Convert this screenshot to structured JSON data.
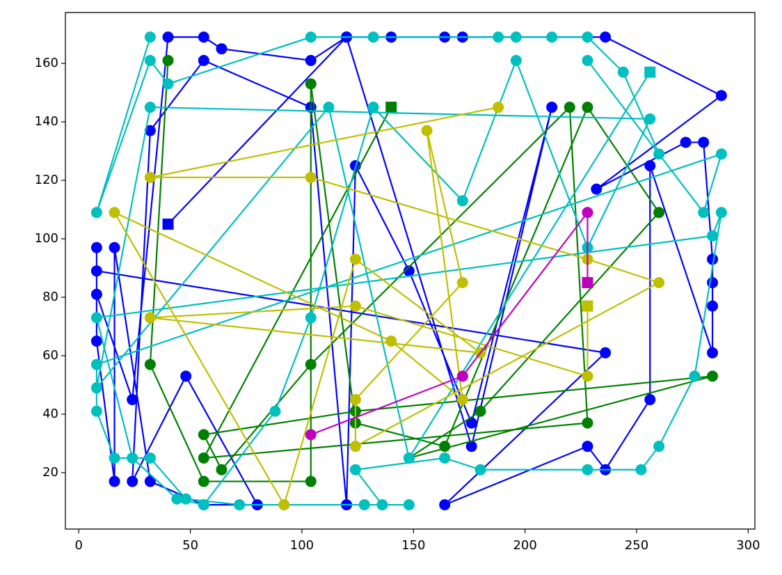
{
  "chart_data": {
    "type": "line",
    "xlim": [
      -6,
      303
    ],
    "ylim": [
      0.7,
      177.4
    ],
    "xticks": [
      0,
      50,
      100,
      150,
      200,
      250,
      300
    ],
    "yticks": [
      20,
      40,
      60,
      80,
      100,
      120,
      140,
      160
    ],
    "series": [
      {
        "color": "#0000ff",
        "x": [
          8,
          8,
          24,
          40,
          56,
          64,
          104,
          120,
          140,
          164,
          172,
          236,
          288,
          232,
          272,
          280,
          284,
          284,
          284,
          284,
          256,
          256,
          236,
          228,
          164,
          236,
          8,
          8,
          16,
          16,
          32,
          56,
          80,
          48,
          24,
          32,
          56,
          104,
          120,
          124,
          148,
          176,
          212,
          176,
          120,
          40
        ],
        "values": [
          97,
          81,
          45,
          169,
          169,
          165,
          161,
          169,
          169,
          169,
          169,
          169,
          149,
          117,
          133,
          133,
          93,
          85,
          77,
          61,
          125,
          45,
          21,
          29,
          9,
          61,
          89,
          65,
          17,
          97,
          17,
          9,
          9,
          53,
          17,
          137,
          161,
          145,
          9,
          125,
          89,
          37,
          145,
          29,
          169,
          105
        ]
      },
      {
        "color": "#008000",
        "x": [
          40,
          32,
          56,
          104,
          104,
          124,
          164,
          228,
          260,
          180,
          148,
          284,
          124,
          56,
          64,
          104,
          220,
          228,
          56,
          140
        ],
        "values": [
          161,
          57,
          17,
          17,
          153,
          37,
          29,
          145,
          109,
          41,
          25,
          53,
          41,
          33,
          21,
          57,
          145,
          37,
          25,
          145
        ]
      },
      {
        "color": "#00bfbf",
        "x": [
          32,
          8,
          32,
          40,
          104,
          132,
          188,
          196,
          212,
          228,
          244,
          260,
          228,
          280,
          288,
          8,
          8,
          16,
          32,
          48,
          72,
          92,
          128,
          148,
          136,
          124,
          164,
          180,
          228,
          252,
          260,
          276,
          288,
          284,
          8,
          24,
          44,
          56,
          88,
          104,
          132,
          172,
          196,
          228,
          256,
          32,
          8,
          112,
          148,
          256
        ],
        "values": [
          169,
          109,
          161,
          153,
          169,
          169,
          169,
          169,
          169,
          169,
          157,
          129,
          161,
          109,
          129,
          57,
          41,
          25,
          25,
          11,
          9,
          9,
          9,
          9,
          9,
          21,
          25,
          21,
          21,
          21,
          29,
          53,
          109,
          101,
          73,
          25,
          11,
          9,
          41,
          73,
          145,
          113,
          161,
          97,
          141,
          145,
          49,
          145,
          25,
          157
        ]
      },
      {
        "color": "#bfbf00",
        "x": [
          188,
          32,
          104,
          228,
          260,
          124,
          124,
          172,
          156,
          172,
          140,
          16,
          92,
          124,
          180,
          32,
          124,
          228,
          228
        ],
        "values": [
          145,
          121,
          121,
          93,
          85,
          29,
          45,
          85,
          137,
          45,
          65,
          109,
          9,
          93,
          61,
          73,
          77,
          53,
          77
        ]
      },
      {
        "color": "#bf00bf",
        "x": [
          104,
          172,
          228,
          228
        ],
        "values": [
          33,
          53,
          109,
          85
        ]
      }
    ]
  }
}
